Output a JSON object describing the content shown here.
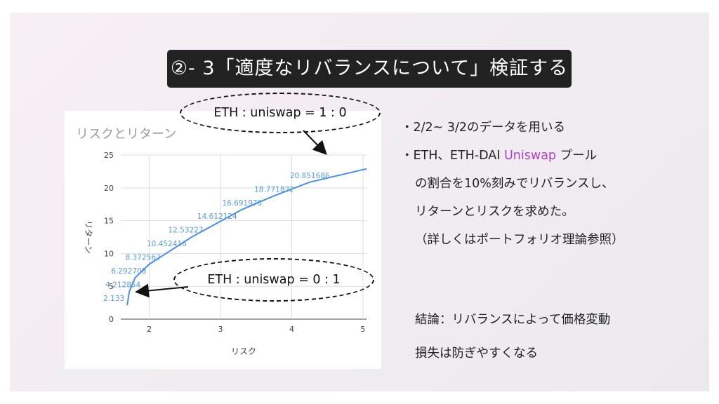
{
  "title": "②- 3「適度なリバランスについて」検証する",
  "bullets": {
    "line1": "・2/2~ 3/2のデータを用いる",
    "line2_prefix": "・ETH、ETH-DAI ",
    "line2_highlight": "Uniswap",
    "line2_suffix": " プール",
    "line3": "の割合を10%刻みでリバランスし、",
    "line4": "リターンとリスクを求めた。",
    "line5": "（詳しくはポートフォリオ理論参照）"
  },
  "conclusion": {
    "line1": "結論：リバランスによって価格変動",
    "line2": "損失は防ぎやすくなる"
  },
  "callouts": {
    "top": "ETH : uniswap = 1 : 0",
    "bottom": "ETH : uniswap = 0 : 1"
  },
  "colors": {
    "line": "#4a8fe0",
    "label": "#5b9bd5",
    "accent": "#b040c8",
    "title_bg": "#222222"
  },
  "chart_data": {
    "type": "line",
    "title": "リスクとリターン",
    "xlabel": "リスク",
    "ylabel": "リターン",
    "xlim": [
      1.6,
      5.05
    ],
    "ylim": [
      0,
      25
    ],
    "x_ticks": [
      2,
      3,
      4,
      5
    ],
    "y_ticks": [
      0,
      5,
      10,
      15,
      20,
      25
    ],
    "grid": true,
    "series": [
      {
        "x": [
          1.69,
          1.72,
          1.8,
          2.0,
          2.3,
          2.6,
          2.95,
          3.3,
          3.75,
          4.25,
          5.05
        ],
        "y": [
          2.13,
          4.212854,
          6.292708,
          8.372562,
          10.452416,
          12.53227,
          14.612124,
          16.691978,
          18.771832,
          20.851686,
          22.9
        ]
      }
    ],
    "data_labels": [
      "2.133",
      "4.212854",
      "6.292708",
      "8.372562",
      "10.452416",
      "12.53227",
      "14.612124",
      "16.691978",
      "18.771832",
      "20.851686"
    ]
  }
}
